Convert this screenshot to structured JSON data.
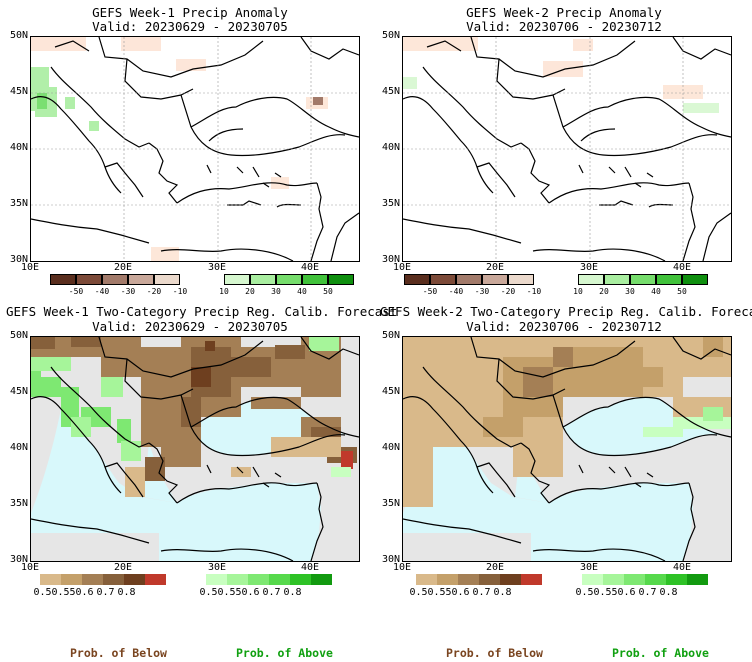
{
  "colors": {
    "below_scale": [
      "#d9b98a",
      "#c4a06a",
      "#a47f55",
      "#86603b",
      "#6e3f1f",
      "#c0392b"
    ],
    "above_scale": [
      "#c8ffc0",
      "#a6f59a",
      "#7ee872",
      "#56d94c",
      "#2ec226",
      "#129a10"
    ],
    "anom_neg": [
      "#5a2e1e",
      "#7c4a38",
      "#a27a6a",
      "#c9a89a",
      "#ebd9cc"
    ],
    "anom_pos": [
      "#d6f7cf",
      "#a9eea0",
      "#76dd6c",
      "#41c23b",
      "#0f8f0f"
    ],
    "ocean": "#d8f8fb",
    "grey": "#e6e6e6",
    "label_below": "#7a4520",
    "label_above": "#10a010"
  },
  "panels": [
    {
      "title1": "GEFS Week-1 Precip Anomaly",
      "title2": "Valid: 20230629 - 20230705"
    },
    {
      "title1": "GEFS Week-2 Precip Anomaly",
      "title2": "Valid: 20230706 - 20230712"
    },
    {
      "title1": "GEFS Week-1 Two-Category Precip Reg. Calib. Forecast",
      "title2": "Valid: 20230629 - 20230705"
    },
    {
      "title1": "GEFS Week-2 Two-Category Precip Reg. Calib. Forecast",
      "title2": "Valid: 20230706 - 20230712"
    }
  ],
  "axes": {
    "y_labels": [
      "50N",
      "45N",
      "40N",
      "35N",
      "30N"
    ],
    "x_labels": [
      "10E",
      "20E",
      "30E",
      "40E"
    ]
  },
  "anom_colorbar_labels": [
    "-50",
    "-40",
    "-30",
    "-20",
    "-10",
    "10",
    "20",
    "30",
    "40",
    "50"
  ],
  "prob_colorbar_labels": [
    "0.5",
    "0.55",
    "0.6",
    "0.7",
    "0.8"
  ],
  "footer": {
    "below": "Prob. of Below",
    "above": "Prob. of Above"
  },
  "chart_data": [
    {
      "type": "heatmap",
      "title": "GEFS Week-1 Precip Anomaly",
      "subtitle": "Valid: 20230629 - 20230705",
      "x_range": [
        "10E",
        "45E"
      ],
      "y_range": [
        "30N",
        "50N"
      ],
      "color_levels": [
        -50,
        -40,
        -30,
        -20,
        -10,
        10,
        20,
        30,
        40,
        50
      ]
    },
    {
      "type": "heatmap",
      "title": "GEFS Week-2 Precip Anomaly",
      "subtitle": "Valid: 20230706 - 20230712",
      "x_range": [
        "10E",
        "45E"
      ],
      "y_range": [
        "30N",
        "50N"
      ],
      "color_levels": [
        -50,
        -40,
        -30,
        -20,
        -10,
        10,
        20,
        30,
        40,
        50
      ]
    },
    {
      "type": "heatmap",
      "title": "GEFS Week-1 Two-Category Precip Reg. Calib. Forecast",
      "subtitle": "Valid: 20230629 - 20230705",
      "x_range": [
        "10E",
        "45E"
      ],
      "y_range": [
        "30N",
        "50N"
      ],
      "below_levels": [
        0.5,
        0.55,
        0.6,
        0.7,
        0.8
      ],
      "above_levels": [
        0.5,
        0.55,
        0.6,
        0.7,
        0.8
      ]
    },
    {
      "type": "heatmap",
      "title": "GEFS Week-2 Two-Category Precip Reg. Calib. Forecast",
      "subtitle": "Valid: 20230706 - 20230712",
      "x_range": [
        "10E",
        "45E"
      ],
      "y_range": [
        "30N",
        "50N"
      ],
      "below_levels": [
        0.5,
        0.55,
        0.6,
        0.7,
        0.8
      ],
      "above_levels": [
        0.5,
        0.55,
        0.6,
        0.7,
        0.8
      ]
    }
  ]
}
